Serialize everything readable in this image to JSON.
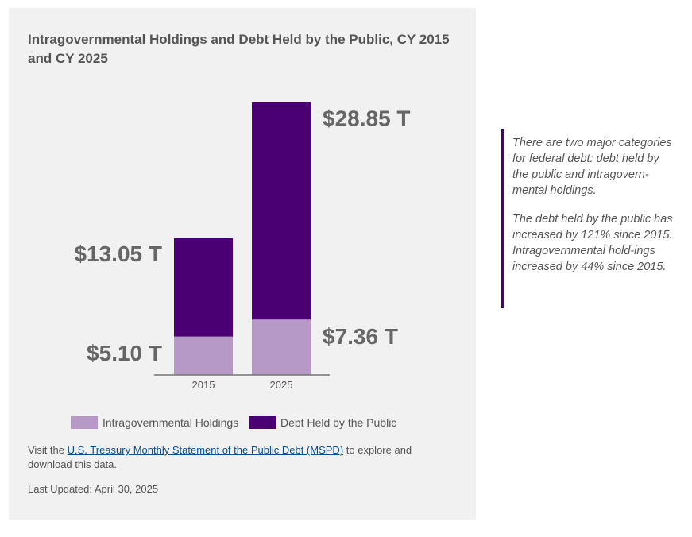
{
  "chart_data": {
    "type": "bar",
    "stacked": true,
    "title": "Intragovernmental Holdings and Debt Held by the Public, CY 2015 and CY 2025",
    "categories": [
      "2015",
      "2025"
    ],
    "series": [
      {
        "name": "Intragovernmental Holdings",
        "values": [
          5.1,
          7.36
        ],
        "color": "#b799c8"
      },
      {
        "name": "Debt Held by the Public",
        "values": [
          13.05,
          28.85
        ],
        "color": "#4a0072"
      }
    ],
    "data_labels": {
      "intragovernmental": [
        "$5.10 T",
        "$7.36 T"
      ],
      "public": [
        "$13.05 T",
        "$28.85 T"
      ]
    },
    "unit": "trillion dollars",
    "legend_position": "bottom"
  },
  "footnote": {
    "prefix": "Visit the ",
    "link_text": "U.S. Treasury Monthly Statement of the Public Debt (MSPD)",
    "suffix": " to explore and download this data."
  },
  "last_updated": "Last Updated: April 30, 2025",
  "side_note": {
    "paragraph1": "There are two major categories for federal debt: debt held by the public and intragovern-mental holdings.",
    "paragraph2": "The debt held by the public has increased by 121% since 2015. Intragovernmental hold-ings increased by 44% since 2015."
  },
  "colors": {
    "intragovernmental": "#b799c8",
    "public": "#4a0072",
    "accent": "#4a0072",
    "link": "#0a4f8b"
  }
}
